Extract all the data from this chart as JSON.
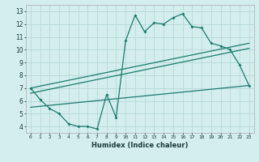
{
  "xlabel": "Humidex (Indice chaleur)",
  "background_color": "#d4eeee",
  "line_color": "#1a7a6e",
  "grid_color": "#b8d8d8",
  "xlim": [
    -0.5,
    23.5
  ],
  "ylim": [
    3.5,
    13.5
  ],
  "xticks": [
    0,
    1,
    2,
    3,
    4,
    5,
    6,
    7,
    8,
    9,
    10,
    11,
    12,
    13,
    14,
    15,
    16,
    17,
    18,
    19,
    20,
    21,
    22,
    23
  ],
  "yticks": [
    4,
    5,
    6,
    7,
    8,
    9,
    10,
    11,
    12,
    13
  ],
  "main_x": [
    0,
    1,
    2,
    3,
    4,
    5,
    6,
    7,
    8,
    9,
    10,
    11,
    12,
    13,
    14,
    15,
    16,
    17,
    18,
    19,
    20,
    21,
    22,
    23
  ],
  "main_y": [
    7.0,
    6.1,
    5.4,
    5.0,
    4.2,
    4.0,
    4.0,
    3.8,
    6.5,
    4.7,
    10.7,
    12.7,
    11.4,
    12.1,
    12.0,
    12.5,
    12.8,
    11.8,
    11.7,
    10.5,
    10.3,
    10.0,
    8.8,
    7.2
  ],
  "trend1_x": [
    0,
    23
  ],
  "trend1_y": [
    7.0,
    10.5
  ],
  "trend2_x": [
    0,
    23
  ],
  "trend2_y": [
    6.6,
    10.1
  ],
  "trend3_x": [
    0,
    23
  ],
  "trend3_y": [
    5.5,
    7.2
  ]
}
